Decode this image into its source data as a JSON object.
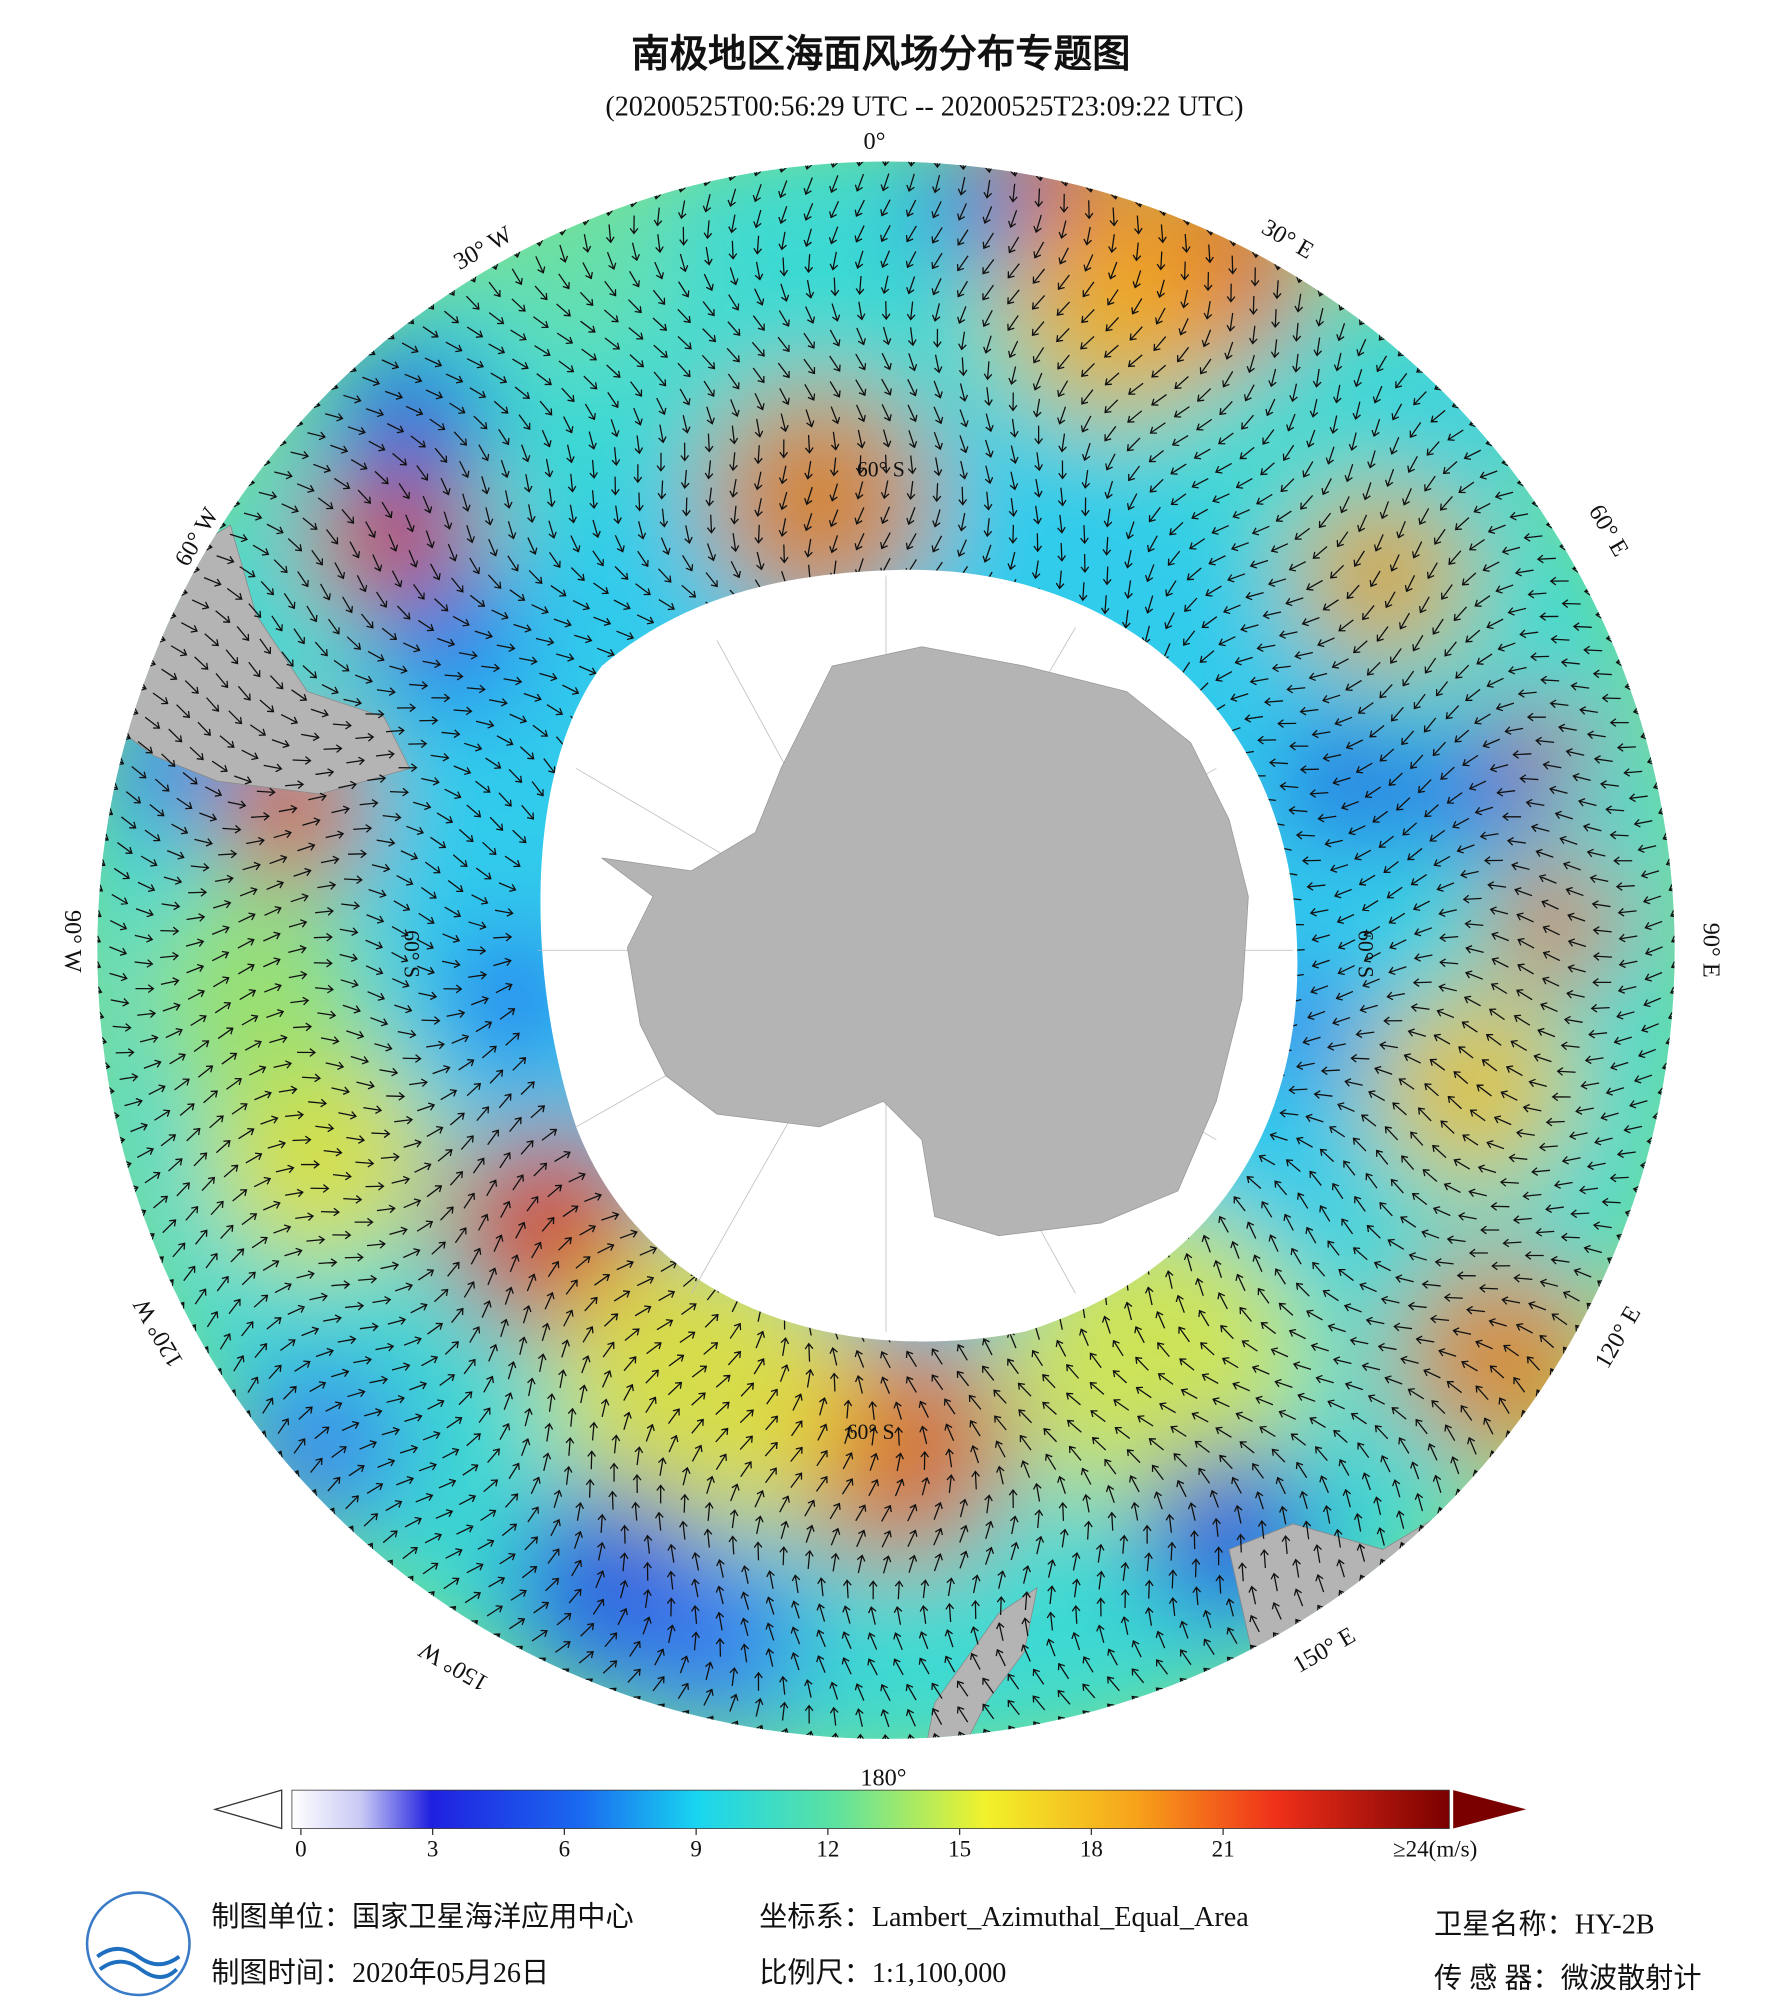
{
  "title": "南极地区海面风场分布专题图",
  "subtitle": "(20200525T00:56:29 UTC -- 20200525T23:09:22 UTC)",
  "graticule": {
    "meridians": [
      "0°",
      "30° E",
      "60° E",
      "90° E",
      "120° E",
      "150° E",
      "180°",
      "150° W",
      "120° W",
      "90° W",
      "60° W",
      "30° W"
    ],
    "parallels": [
      "60° S",
      "60° S",
      "60° S",
      "60° S"
    ]
  },
  "colorbar": {
    "ticks": [
      0,
      3,
      6,
      9,
      12,
      15,
      18,
      21
    ],
    "max_label": "≥24(m/s)"
  },
  "footer": {
    "unit": "制图单位：国家卫星海洋应用中心",
    "date": "制图时间：2020年05月26日",
    "crs": "坐标系：Lambert_Azimuthal_Equal_Area",
    "scale": "比例尺：1:1,100,000",
    "satellite": "卫星名称：HY-2B",
    "sensor": "传 感 器：微波散射计"
  }
}
